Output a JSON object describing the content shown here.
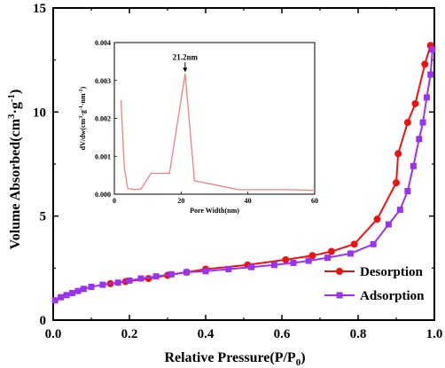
{
  "chart_data": [
    {
      "type": "line",
      "xlabel": "Relative Pressure(P/P",
      "xlabel_sub": "0",
      "xlabel_end": ")",
      "ylabel": "Volume Absorbed(cm",
      "ylabel_sup1": "3",
      "ylabel_mid": "·g",
      "ylabel_sup2": "-1",
      "ylabel_end": ")",
      "xlim": [
        0.0,
        1.0
      ],
      "ylim": [
        0,
        15
      ],
      "xticks": [
        "0.0",
        "0.2",
        "0.4",
        "0.6",
        "0.8",
        "1.0"
      ],
      "yticks": [
        "0",
        "5",
        "10",
        "15"
      ],
      "legend_position": "bottom-right",
      "grid": false,
      "series": [
        {
          "name": "Desorption",
          "color": "#ee1111",
          "marker": "circle",
          "points": [
            [
              0.15,
              1.75
            ],
            [
              0.19,
              1.85
            ],
            [
              0.25,
              2.0
            ],
            [
              0.3,
              2.15
            ],
            [
              0.35,
              2.3
            ],
            [
              0.4,
              2.45
            ],
            [
              0.51,
              2.65
            ],
            [
              0.61,
              2.9
            ],
            [
              0.68,
              3.1
            ],
            [
              0.73,
              3.3
            ],
            [
              0.79,
              3.65
            ],
            [
              0.85,
              4.85
            ],
            [
              0.9,
              6.6
            ],
            [
              0.905,
              8.0
            ],
            [
              0.93,
              9.5
            ],
            [
              0.95,
              10.4
            ],
            [
              0.975,
              12.3
            ],
            [
              0.99,
              13.2
            ]
          ]
        },
        {
          "name": "Adsorption",
          "color": "#9933ee",
          "marker": "square",
          "points": [
            [
              0.005,
              0.95
            ],
            [
              0.02,
              1.1
            ],
            [
              0.035,
              1.2
            ],
            [
              0.05,
              1.3
            ],
            [
              0.065,
              1.4
            ],
            [
              0.08,
              1.5
            ],
            [
              0.1,
              1.6
            ],
            [
              0.13,
              1.7
            ],
            [
              0.17,
              1.8
            ],
            [
              0.2,
              1.9
            ],
            [
              0.23,
              2.0
            ],
            [
              0.27,
              2.1
            ],
            [
              0.31,
              2.2
            ],
            [
              0.35,
              2.3
            ],
            [
              0.4,
              2.35
            ],
            [
              0.46,
              2.45
            ],
            [
              0.52,
              2.55
            ],
            [
              0.58,
              2.65
            ],
            [
              0.63,
              2.75
            ],
            [
              0.67,
              2.85
            ],
            [
              0.72,
              3.0
            ],
            [
              0.78,
              3.2
            ],
            [
              0.84,
              3.65
            ],
            [
              0.88,
              4.6
            ],
            [
              0.91,
              5.3
            ],
            [
              0.93,
              6.2
            ],
            [
              0.945,
              7.4
            ],
            [
              0.96,
              8.7
            ],
            [
              0.97,
              9.5
            ],
            [
              0.98,
              10.7
            ],
            [
              0.99,
              11.8
            ],
            [
              0.995,
              13.0
            ]
          ]
        }
      ]
    },
    {
      "type": "line",
      "xlabel": "Pore Width(nm)",
      "ylabel": "dV/dw(cm",
      "ylabel_sup1": "3",
      "ylabel_mid": "·g",
      "ylabel_sup2": "-1",
      "ylabel_mid2": "·nm",
      "ylabel_sup3": "-1",
      "ylabel_end": ")",
      "xlim": [
        0,
        60
      ],
      "ylim": [
        0,
        0.004
      ],
      "xticks": [
        "0",
        "20",
        "40",
        "60"
      ],
      "yticks": [
        "0.000",
        "0.001",
        "0.002",
        "0.003",
        "0.004"
      ],
      "annotation": "21.2nm",
      "annotation_x": 21.2,
      "annotation_y": 0.00315,
      "series": [
        {
          "color": "#f08080",
          "points": [
            [
              2,
              0.00248
            ],
            [
              3,
              0.0007
            ],
            [
              4,
              0.00015
            ],
            [
              6,
              0.00012
            ],
            [
              8,
              0.00014
            ],
            [
              11,
              0.00055
            ],
            [
              14,
              0.00055
            ],
            [
              16.5,
              0.00055
            ],
            [
              21.2,
              0.00318
            ],
            [
              24,
              0.00035
            ],
            [
              30,
              0.00025
            ],
            [
              37,
              0.00012
            ],
            [
              45,
              0.00012
            ],
            [
              52,
              0.00012
            ],
            [
              60,
              0.0001
            ]
          ]
        }
      ]
    }
  ]
}
